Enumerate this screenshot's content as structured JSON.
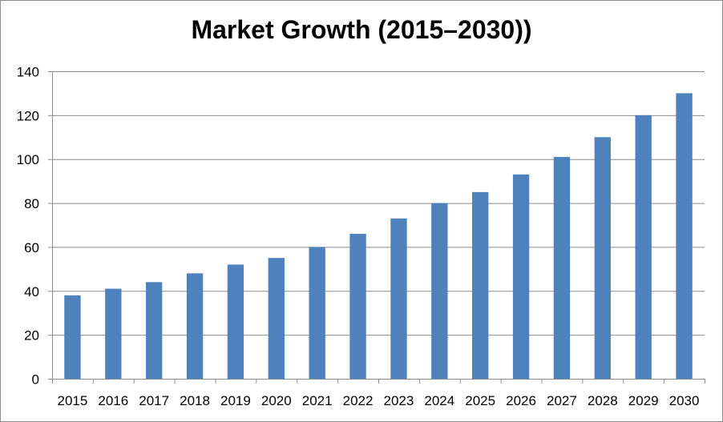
{
  "chart_data": {
    "type": "bar",
    "title": "Market Growth (2015–2030))",
    "xlabel": "",
    "ylabel": "",
    "categories": [
      "2015",
      "2016",
      "2017",
      "2018",
      "2019",
      "2020",
      "2021",
      "2022",
      "2023",
      "2024",
      "2025",
      "2026",
      "2027",
      "2028",
      "2029",
      "2030"
    ],
    "values": [
      38,
      41,
      44,
      48,
      52,
      55,
      60,
      66,
      73,
      80,
      85,
      93,
      101,
      110,
      120,
      130
    ],
    "ylim": [
      0,
      140
    ],
    "yticks": [
      "0",
      "20",
      "40",
      "60",
      "80",
      "100",
      "120",
      "140"
    ],
    "grid": true,
    "legend": "none",
    "bar_color": "#4f81bd",
    "grid_color": "#8c8c8c"
  }
}
